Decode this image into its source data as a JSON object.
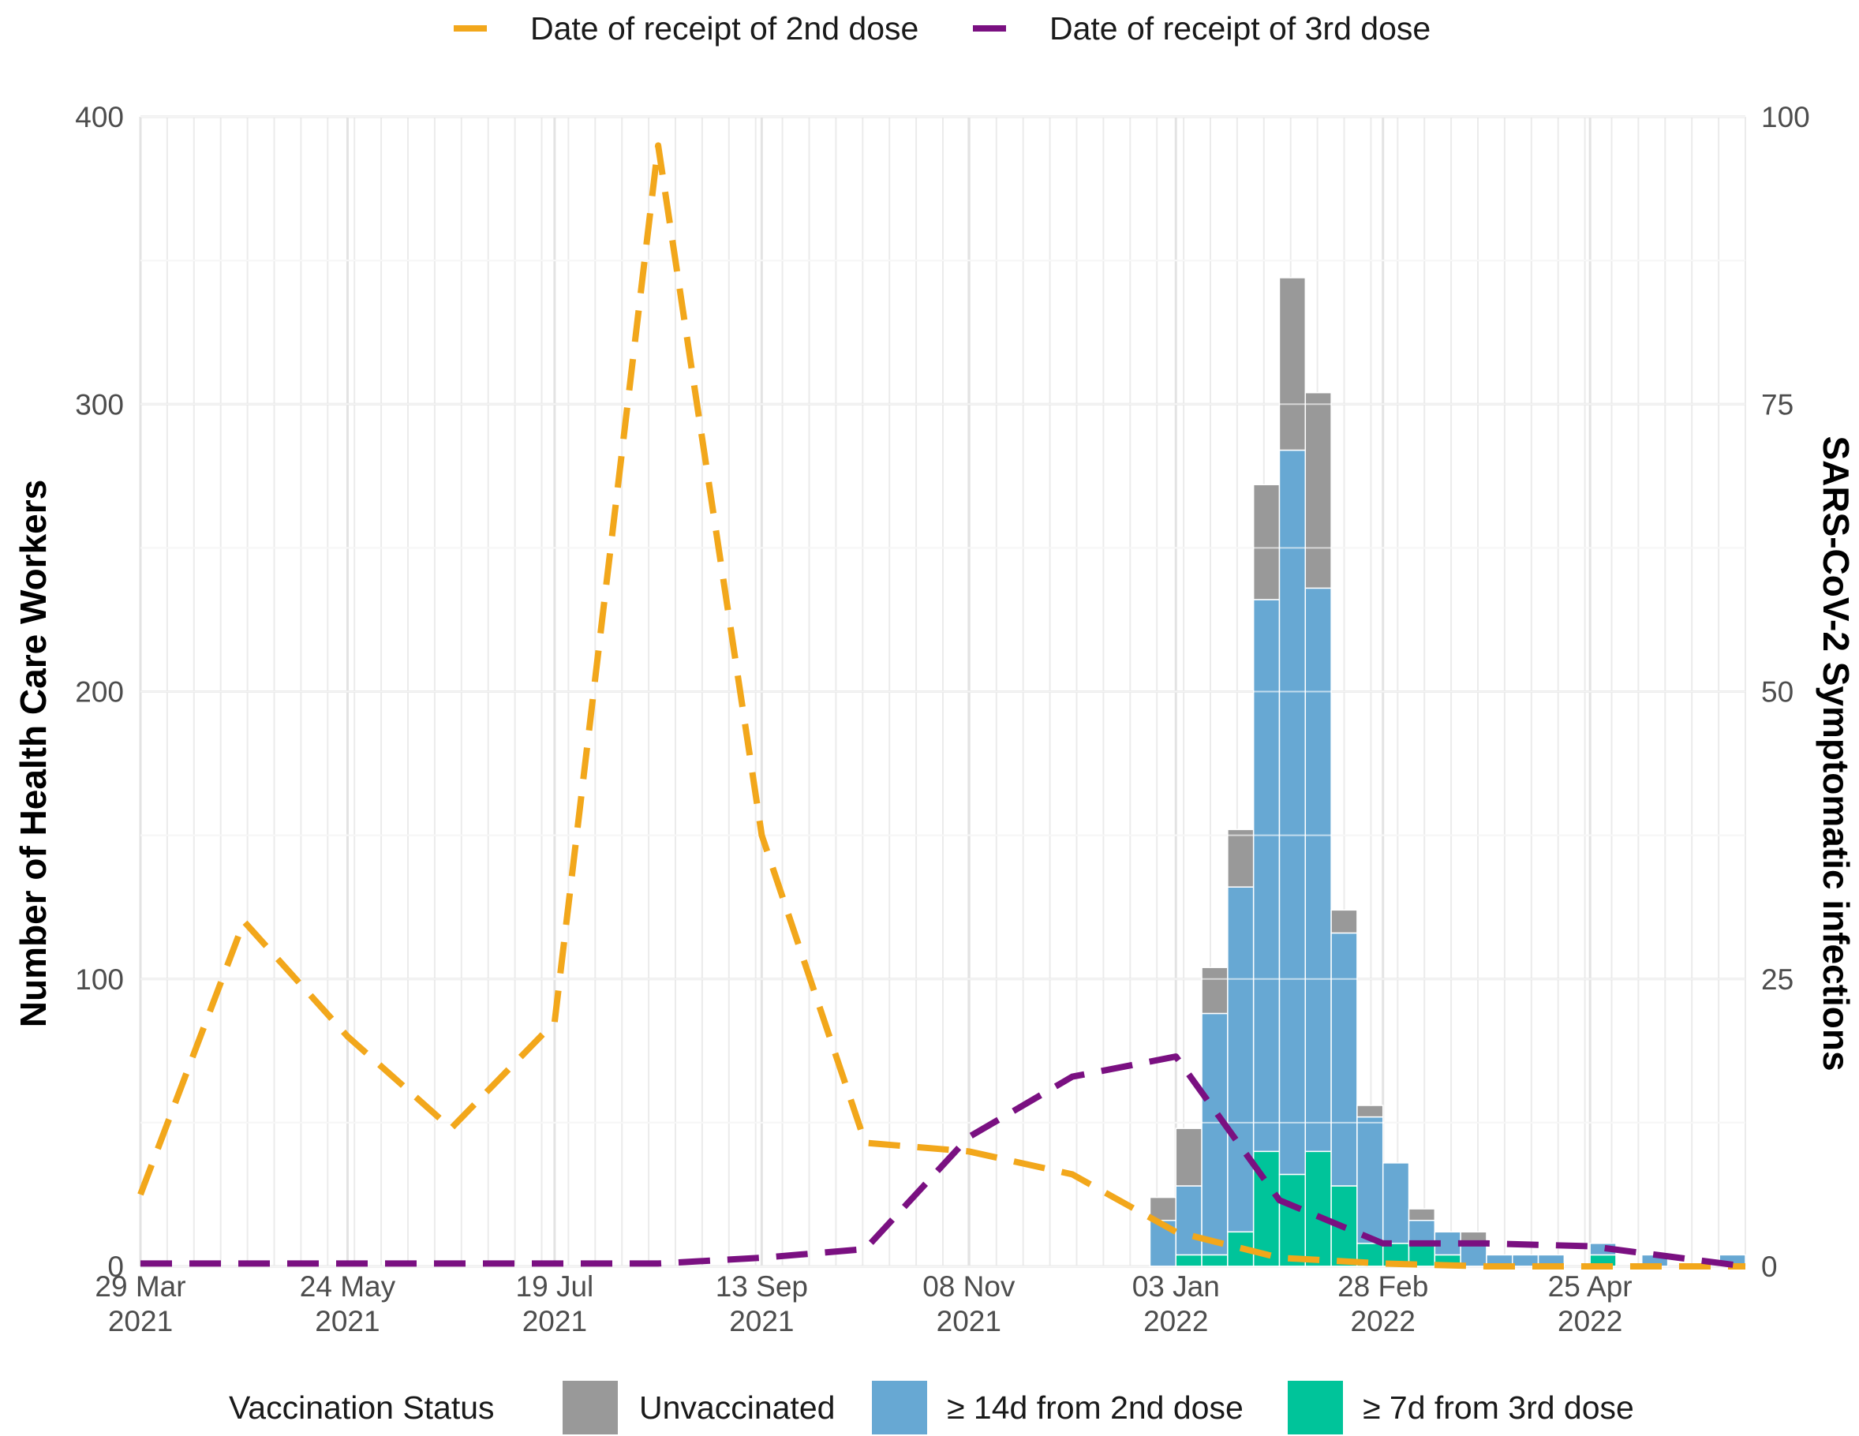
{
  "chart_data": {
    "type": "bar",
    "y_left_label": "Number of Health Care Workers",
    "y_right_label": "SARS-CoV-2 Symptomatic infections",
    "ylim_left": [
      0,
      400
    ],
    "ylim_right": [
      0,
      100
    ],
    "y_left_ticks": [
      "0",
      "100",
      "200",
      "300",
      "400"
    ],
    "y_right_ticks": [
      "0",
      "25",
      "50",
      "75",
      "100"
    ],
    "x_ticks": [
      {
        "date": "2021-03-29",
        "line1": "29 Mar",
        "line2": "2021"
      },
      {
        "date": "2021-05-24",
        "line1": "24 May",
        "line2": "2021"
      },
      {
        "date": "2021-07-19",
        "line1": "19 Jul",
        "line2": "2021"
      },
      {
        "date": "2021-09-13",
        "line1": "13 Sep",
        "line2": "2021"
      },
      {
        "date": "2021-11-08",
        "line1": "08 Nov",
        "line2": "2021"
      },
      {
        "date": "2022-01-03",
        "line1": "03 Jan",
        "line2": "2022"
      },
      {
        "date": "2022-02-28",
        "line1": "28 Feb",
        "line2": "2022"
      },
      {
        "date": "2022-04-25",
        "line1": "25 Apr",
        "line2": "2022"
      }
    ],
    "xlim": [
      "2021-03-29",
      "2022-06-06"
    ],
    "grid": true,
    "bars": {
      "axis": "right",
      "week_start": [
        "2021-12-27",
        "2022-01-03",
        "2022-01-10",
        "2022-01-17",
        "2022-01-24",
        "2022-01-31",
        "2022-02-07",
        "2022-02-14",
        "2022-02-21",
        "2022-02-28",
        "2022-03-07",
        "2022-03-14",
        "2022-03-21",
        "2022-03-28",
        "2022-04-04",
        "2022-04-11",
        "2022-04-18",
        "2022-04-25",
        "2022-05-02",
        "2022-05-09",
        "2022-05-16",
        "2022-05-23",
        "2022-05-30"
      ],
      "stack_order": [
        "third",
        "second",
        "unvacc"
      ],
      "series": [
        {
          "key": "unvacc",
          "name": "Unvaccinated",
          "color": "#999999",
          "values": [
            2,
            5,
            4,
            5,
            10,
            15,
            17,
            2,
            1,
            0,
            1,
            0,
            1,
            0,
            0,
            0,
            0,
            0,
            0,
            0,
            0,
            0,
            0
          ]
        },
        {
          "key": "second",
          "name": "≥ 14d from 2nd dose",
          "color": "#67a8d3",
          "values": [
            4,
            6,
            21,
            30,
            48,
            63,
            49,
            22,
            11,
            7,
            2,
            2,
            2,
            1,
            1,
            1,
            0,
            1,
            0,
            1,
            0,
            0,
            1
          ]
        },
        {
          "key": "third",
          "name": "≥ 7d from 3rd dose",
          "color": "#00c49a",
          "values": [
            0,
            1,
            1,
            3,
            10,
            8,
            10,
            7,
            2,
            2,
            2,
            1,
            0,
            0,
            0,
            0,
            0,
            1,
            0,
            0,
            0,
            0,
            0
          ]
        }
      ]
    },
    "lines": {
      "axis": "left",
      "series": [
        {
          "name": "Date of receipt of 2nd dose",
          "color": "#f2a71b",
          "points": [
            {
              "x": "2021-03-29",
              "y": 25
            },
            {
              "x": "2021-04-26",
              "y": 120
            },
            {
              "x": "2021-05-24",
              "y": 80
            },
            {
              "x": "2021-06-21",
              "y": 48
            },
            {
              "x": "2021-07-19",
              "y": 85
            },
            {
              "x": "2021-08-16",
              "y": 390
            },
            {
              "x": "2021-09-13",
              "y": 150
            },
            {
              "x": "2021-10-11",
              "y": 43
            },
            {
              "x": "2021-11-08",
              "y": 40
            },
            {
              "x": "2021-12-06",
              "y": 32
            },
            {
              "x": "2022-01-03",
              "y": 12
            },
            {
              "x": "2022-01-31",
              "y": 3
            },
            {
              "x": "2022-02-28",
              "y": 1
            },
            {
              "x": "2022-03-28",
              "y": 0
            },
            {
              "x": "2022-04-25",
              "y": 0
            },
            {
              "x": "2022-06-06",
              "y": 0
            }
          ]
        },
        {
          "name": "Date of receipt of 3rd dose",
          "color": "#7a1081",
          "points": [
            {
              "x": "2021-03-29",
              "y": 1
            },
            {
              "x": "2021-04-26",
              "y": 1
            },
            {
              "x": "2021-05-24",
              "y": 1
            },
            {
              "x": "2021-06-21",
              "y": 1
            },
            {
              "x": "2021-07-19",
              "y": 1
            },
            {
              "x": "2021-08-16",
              "y": 1
            },
            {
              "x": "2021-09-13",
              "y": 3
            },
            {
              "x": "2021-10-11",
              "y": 6
            },
            {
              "x": "2021-11-08",
              "y": 45
            },
            {
              "x": "2021-12-06",
              "y": 66
            },
            {
              "x": "2022-01-03",
              "y": 73
            },
            {
              "x": "2022-01-31",
              "y": 23
            },
            {
              "x": "2022-02-28",
              "y": 8
            },
            {
              "x": "2022-03-28",
              "y": 8
            },
            {
              "x": "2022-04-25",
              "y": 7
            },
            {
              "x": "2022-06-06",
              "y": 0
            }
          ]
        }
      ]
    },
    "legend_top": {
      "placement": "top",
      "entries": [
        "Date of receipt of 2nd dose",
        "Date of receipt of 3rd dose"
      ]
    },
    "legend_bottom": {
      "placement": "bottom",
      "title": "Vaccination Status",
      "entries": [
        "Unvaccinated",
        "≥ 14d from 2nd dose",
        "≥ 7d from 3rd dose"
      ]
    }
  }
}
